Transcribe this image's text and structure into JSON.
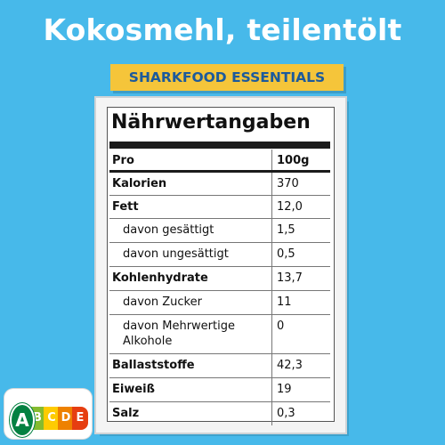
{
  "title": "Kokosmehl, teilentölt",
  "brand": "SHARKFOOD ESSENTIALS",
  "nutrition": {
    "heading": "Nährwertangaben",
    "header": {
      "label": "Pro",
      "value": "100g"
    },
    "rows": [
      {
        "label": "Kalorien",
        "value": "370"
      },
      {
        "label": "Fett",
        "value": "12,0"
      },
      {
        "label": "davon gesättigt",
        "value": "1,5"
      },
      {
        "label": "davon ungesättigt",
        "value": "0,5"
      },
      {
        "label": "Kohlenhydrate",
        "value": "13,7"
      },
      {
        "label": "davon Zucker",
        "value": "11"
      },
      {
        "label": "davon Mehrwertige Alkohole",
        "value": "0"
      },
      {
        "label": "Ballaststoffe",
        "value": "42,3"
      },
      {
        "label": "Eiweiß",
        "value": "19"
      },
      {
        "label": "Salz",
        "value": "0,3"
      }
    ]
  },
  "nutriscore": {
    "letters": [
      "A",
      "B",
      "C",
      "D",
      "E"
    ],
    "selected": "A",
    "colors": [
      "#038141",
      "#85bb2f",
      "#fecb02",
      "#ee8100",
      "#e63e11"
    ]
  },
  "colors": {
    "background": "#47b9ea",
    "brand_bg": "#f5c53a",
    "brand_text": "#1c5a9c"
  }
}
